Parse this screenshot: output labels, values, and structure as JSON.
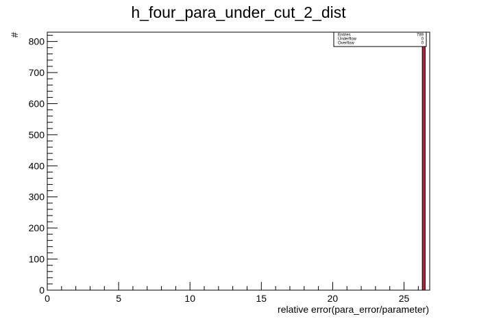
{
  "chart_data": {
    "type": "bar",
    "title": "h_four_para_under_cut_2_dist",
    "xlabel": "relative error(para_error/parameter)",
    "ylabel": "#",
    "xlim": [
      0,
      26.8
    ],
    "ylim": [
      0,
      830
    ],
    "x_ticks": [
      "0",
      "5",
      "10",
      "15",
      "20",
      "25"
    ],
    "y_ticks": [
      "0",
      "100",
      "200",
      "300",
      "400",
      "500",
      "600",
      "700",
      "800"
    ],
    "grid": false,
    "bars": [
      {
        "x_start": 26.28,
        "x_end": 26.48,
        "value": 789
      }
    ],
    "bar_fill_color": "#d8143c",
    "bar_edge_color": "#000000",
    "stats_box": {
      "position": "top-right",
      "rows": [
        {
          "label": "Entries",
          "value": "789"
        },
        {
          "label": "Underflow",
          "value": "0"
        },
        {
          "label": "Overflow",
          "value": "0"
        }
      ]
    }
  }
}
